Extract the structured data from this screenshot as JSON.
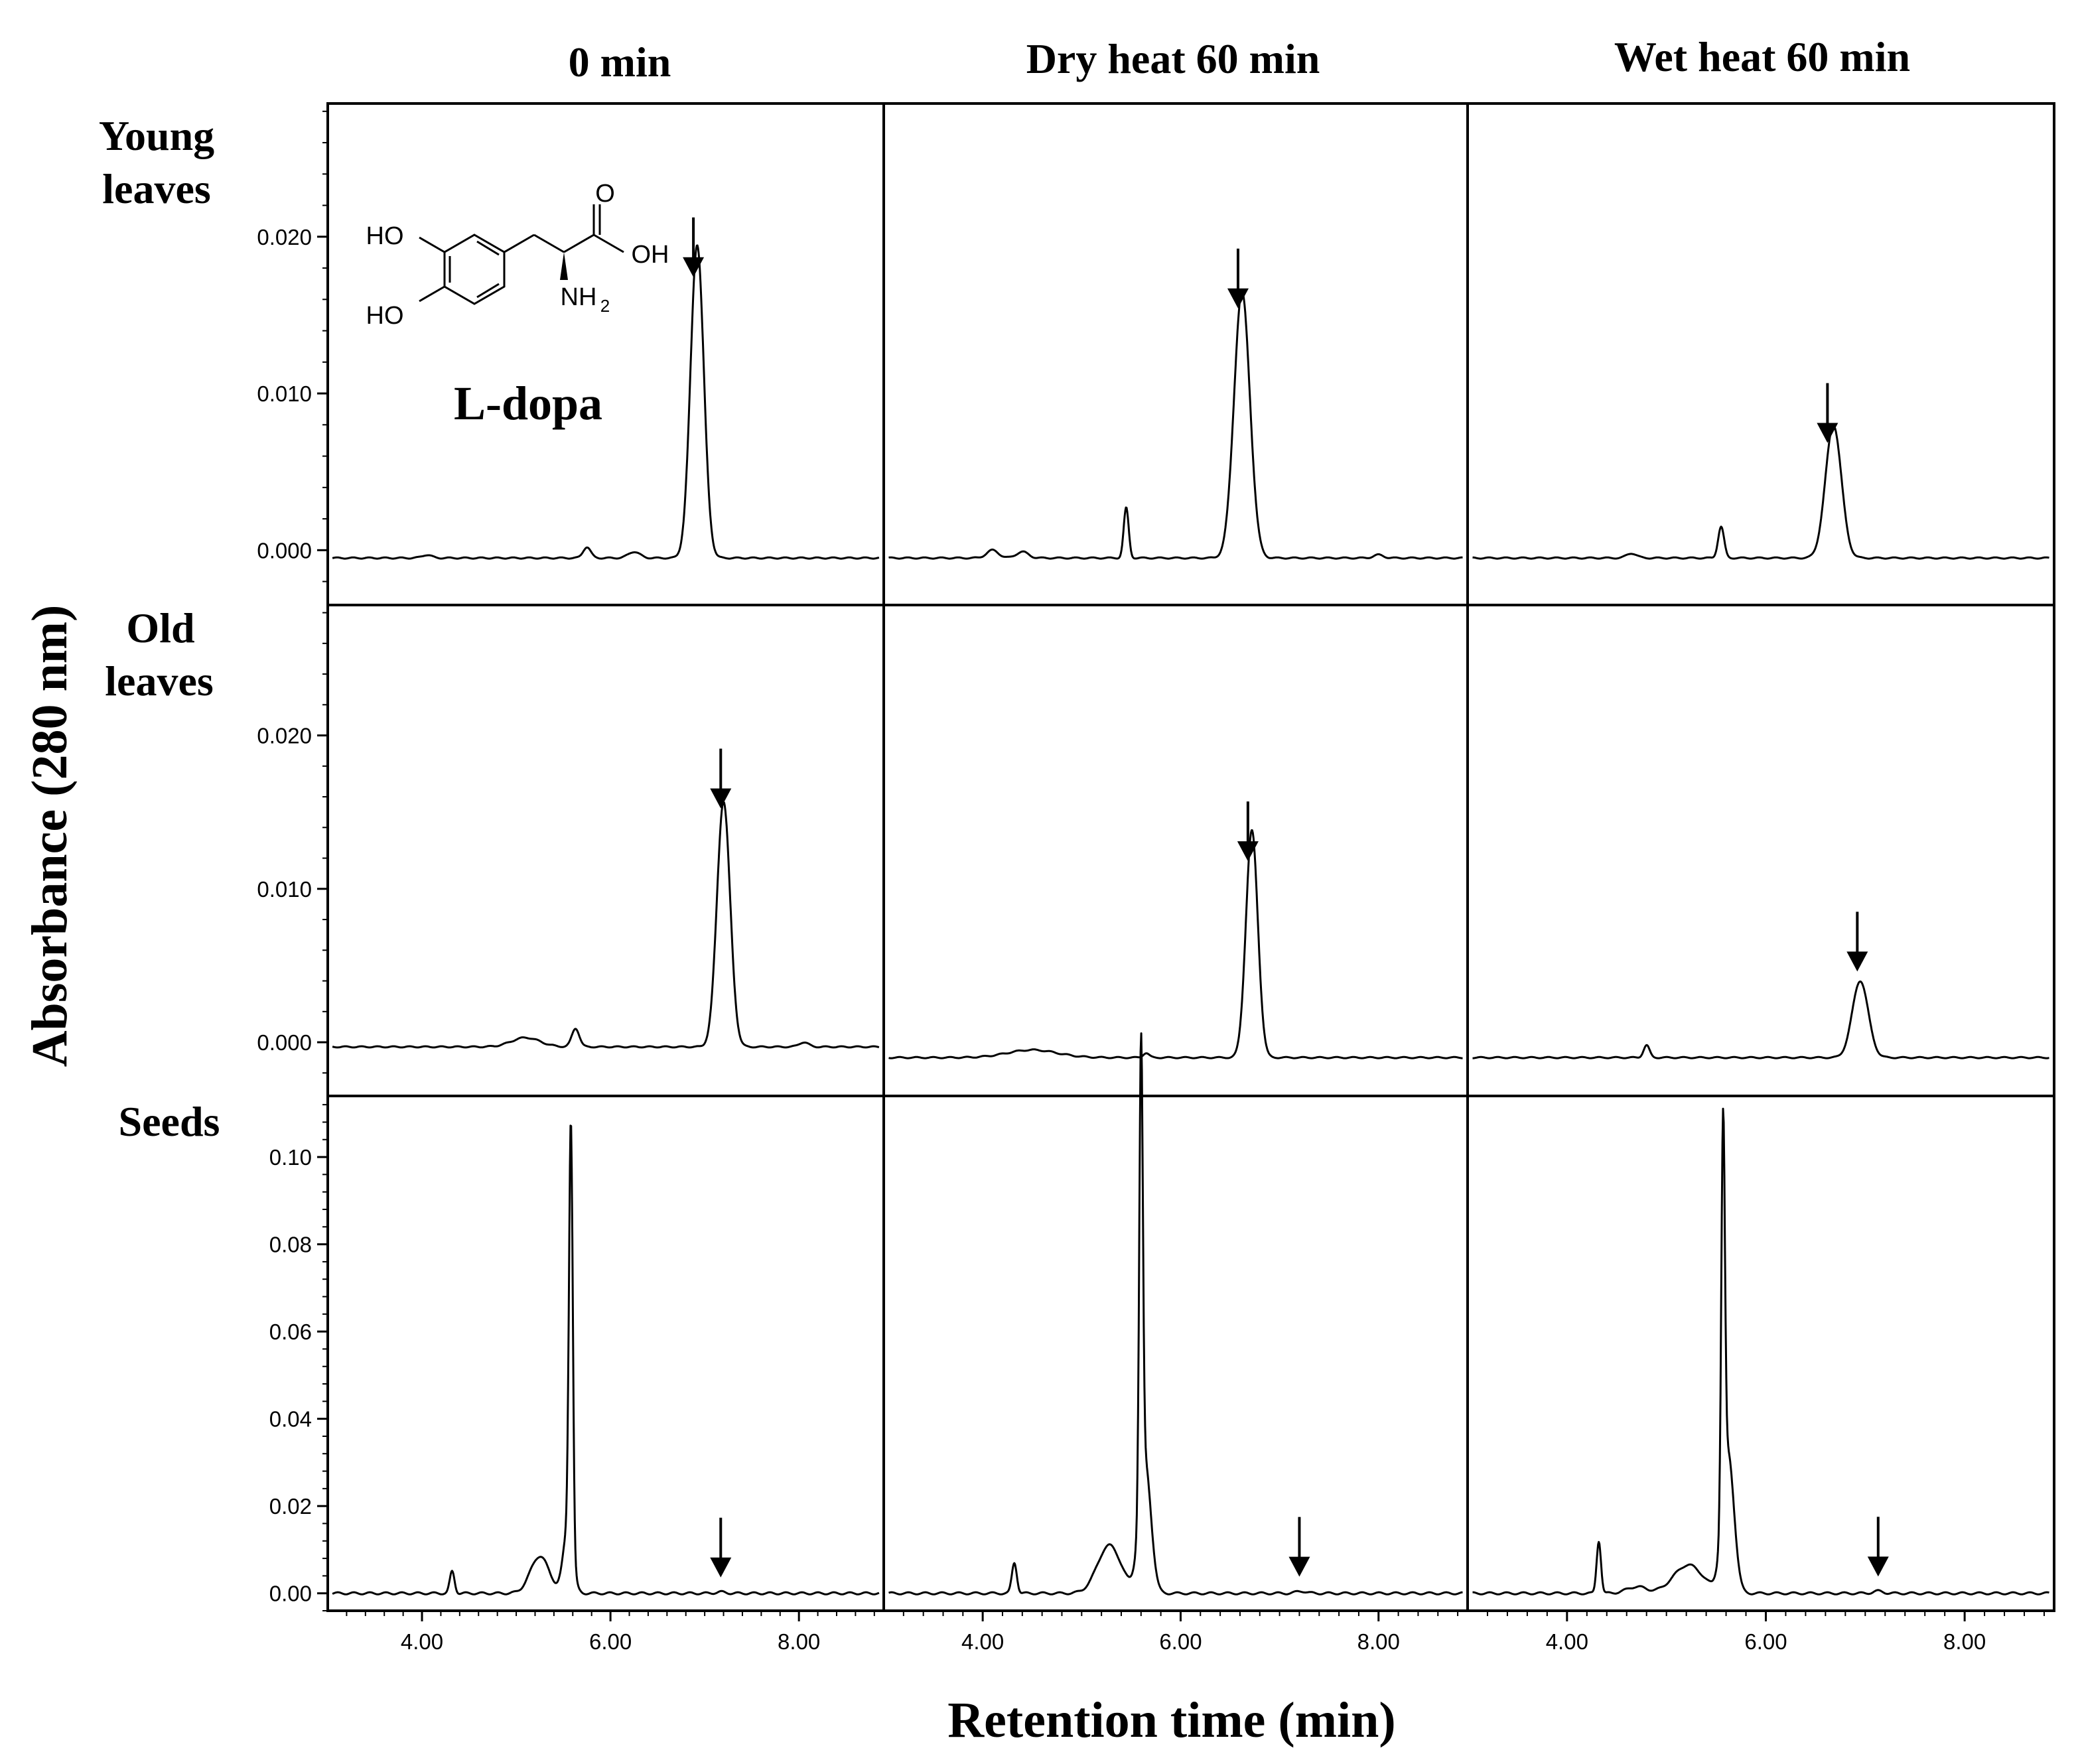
{
  "chart_data": {
    "type": "line",
    "title": "",
    "xlabel": "Retention time (min)",
    "ylabel": "Absorbance (280 nm)",
    "xlim": [
      3.0,
      8.9
    ],
    "x_ticks": [
      "4.00",
      "6.00",
      "8.00"
    ],
    "x_tick_values": [
      4,
      6,
      8
    ],
    "columns": [
      "0 min",
      "Dry heat 60 min",
      "Wet heat 60 min"
    ],
    "rows": [
      {
        "name": "Young\nleaves",
        "label_lines": [
          "Young",
          "leaves"
        ],
        "ylim": [
          -0.0035,
          0.0285
        ],
        "y_ticks": [
          "0.000",
          "0.010",
          "0.020"
        ],
        "y_tick_values": [
          0,
          0.01,
          0.02
        ]
      },
      {
        "name": "Old\nleaves",
        "label_lines": [
          "Old",
          "leaves"
        ],
        "ylim": [
          -0.0035,
          0.0285
        ],
        "y_ticks": [
          "0.000",
          "0.010",
          "0.020"
        ],
        "y_tick_values": [
          0,
          0.01,
          0.02
        ]
      },
      {
        "name": "Seeds",
        "label_lines": [
          "Seeds"
        ],
        "ylim": [
          -0.004,
          0.114
        ],
        "y_ticks": [
          "0.00",
          "0.02",
          "0.04",
          "0.06",
          "0.08",
          "0.10"
        ],
        "y_tick_values": [
          0,
          0.02,
          0.04,
          0.06,
          0.08,
          0.1
        ]
      }
    ],
    "panels": [
      {
        "row": 0,
        "col": 0,
        "baseline": -0.0005,
        "arrow_x": 6.88,
        "peaks": [
          {
            "x": 6.92,
            "h": 0.02,
            "w": 0.07
          },
          {
            "x": 5.75,
            "h": 0.0007,
            "w": 0.04
          },
          {
            "x": 6.25,
            "h": 0.0004,
            "w": 0.06
          },
          {
            "x": 4.05,
            "h": 0.0002,
            "w": 0.05
          }
        ]
      },
      {
        "row": 0,
        "col": 1,
        "baseline": -0.0005,
        "arrow_x": 6.58,
        "peaks": [
          {
            "x": 6.62,
            "h": 0.017,
            "w": 0.08
          },
          {
            "x": 5.45,
            "h": 0.0032,
            "w": 0.025
          },
          {
            "x": 4.1,
            "h": 0.0005,
            "w": 0.06
          },
          {
            "x": 4.4,
            "h": 0.0004,
            "w": 0.06
          },
          {
            "x": 8.0,
            "h": 0.0002,
            "w": 0.05
          }
        ]
      },
      {
        "row": 0,
        "col": 2,
        "baseline": -0.0005,
        "arrow_x": 6.62,
        "peaks": [
          {
            "x": 6.68,
            "h": 0.0085,
            "w": 0.08
          },
          {
            "x": 5.55,
            "h": 0.002,
            "w": 0.03
          },
          {
            "x": 4.65,
            "h": 0.0003,
            "w": 0.05
          }
        ]
      },
      {
        "row": 1,
        "col": 0,
        "baseline": -0.0003,
        "arrow_x": 7.17,
        "peaks": [
          {
            "x": 7.2,
            "h": 0.016,
            "w": 0.07
          },
          {
            "x": 5.63,
            "h": 0.0012,
            "w": 0.04
          },
          {
            "x": 5.1,
            "h": 0.0006,
            "w": 0.15
          },
          {
            "x": 8.05,
            "h": 0.0003,
            "w": 0.05
          }
        ]
      },
      {
        "row": 1,
        "col": 1,
        "baseline": -0.001,
        "arrow_x": 6.68,
        "peaks": [
          {
            "x": 6.72,
            "h": 0.0148,
            "w": 0.06
          },
          {
            "x": 4.5,
            "h": 0.0005,
            "w": 0.25
          },
          {
            "x": 5.65,
            "h": 0.0003,
            "w": 0.03
          }
        ]
      },
      {
        "row": 1,
        "col": 2,
        "baseline": -0.001,
        "arrow_x": 6.92,
        "peaks": [
          {
            "x": 6.95,
            "h": 0.005,
            "w": 0.08
          },
          {
            "x": 4.8,
            "h": 0.0008,
            "w": 0.03
          }
        ]
      },
      {
        "row": 2,
        "col": 0,
        "baseline": 0.0,
        "arrow_x": 7.17,
        "peaks": [
          {
            "x": 5.58,
            "h": 0.096,
            "w": 0.02
          },
          {
            "x": 5.55,
            "h": 0.015,
            "w": 0.05
          },
          {
            "x": 5.25,
            "h": 0.0085,
            "w": 0.1
          },
          {
            "x": 4.32,
            "h": 0.005,
            "w": 0.025
          },
          {
            "x": 7.17,
            "h": 0.0003,
            "w": 0.05
          }
        ]
      },
      {
        "row": 2,
        "col": 1,
        "baseline": 0.0,
        "arrow_x": 7.2,
        "peaks": [
          {
            "x": 5.6,
            "h": 0.104,
            "w": 0.018
          },
          {
            "x": 5.64,
            "h": 0.03,
            "w": 0.06
          },
          {
            "x": 5.28,
            "h": 0.011,
            "w": 0.12
          },
          {
            "x": 4.32,
            "h": 0.007,
            "w": 0.025
          },
          {
            "x": 7.22,
            "h": 0.0005,
            "w": 0.05
          }
        ]
      },
      {
        "row": 2,
        "col": 2,
        "baseline": 0.0,
        "arrow_x": 7.13,
        "peaks": [
          {
            "x": 5.57,
            "h": 0.088,
            "w": 0.018
          },
          {
            "x": 5.62,
            "h": 0.032,
            "w": 0.06
          },
          {
            "x": 5.22,
            "h": 0.0065,
            "w": 0.15
          },
          {
            "x": 4.32,
            "h": 0.012,
            "w": 0.022
          },
          {
            "x": 4.7,
            "h": 0.0015,
            "w": 0.1
          },
          {
            "x": 7.13,
            "h": 0.0005,
            "w": 0.05
          }
        ]
      }
    ],
    "annotations": {
      "compound": "L-dopa",
      "structure_labels": [
        "HO",
        "HO",
        "O",
        "OH",
        "NH",
        "2"
      ]
    }
  }
}
